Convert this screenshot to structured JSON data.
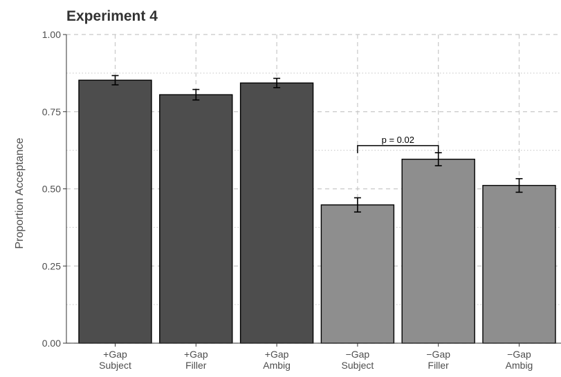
{
  "chart_data": {
    "type": "bar",
    "title": "Experiment 4",
    "xlabel": "",
    "ylabel": "Proportion Acceptance",
    "ylim": [
      0,
      1
    ],
    "yticks": [
      "0.00",
      "0.25",
      "0.50",
      "0.75",
      "1.00"
    ],
    "grid": true,
    "categories": [
      [
        "+Gap",
        "Subject"
      ],
      [
        "+Gap",
        "Filler"
      ],
      [
        "+Gap",
        "Ambig"
      ],
      [
        "−Gap",
        "Subject"
      ],
      [
        "−Gap",
        "Filler"
      ],
      [
        "−Gap",
        "Ambig"
      ]
    ],
    "values": [
      0.852,
      0.805,
      0.843,
      0.448,
      0.596,
      0.511
    ],
    "errors": [
      0.015,
      0.017,
      0.015,
      0.023,
      0.021,
      0.022
    ],
    "bar_colors": [
      "#4d4d4d",
      "#4d4d4d",
      "#4d4d4d",
      "#8e8e8e",
      "#8e8e8e",
      "#8e8e8e"
    ],
    "annotations": [
      {
        "text": "p = 0.02",
        "from_index": 3,
        "to_index": 4,
        "y": 0.64
      }
    ]
  }
}
